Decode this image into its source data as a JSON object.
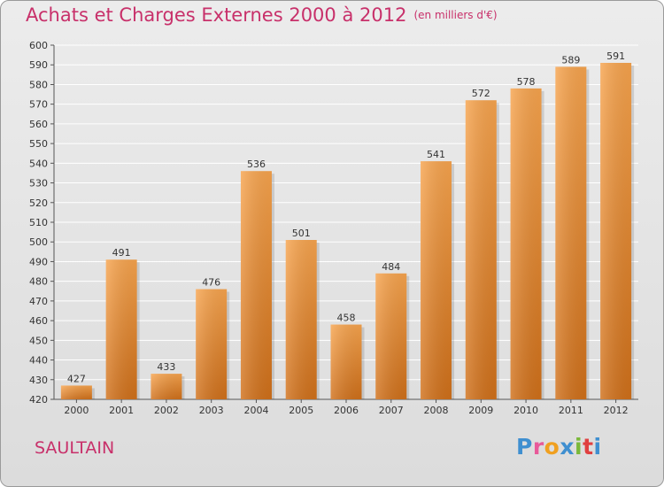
{
  "header": {
    "title": "Achats et Charges Externes 2000 à 2012",
    "unit": "(en milliers d'€)"
  },
  "footer": {
    "city": "SAULTAIN",
    "logo": "Proxiti",
    "logo_letters": [
      "P",
      "r",
      "o",
      "x",
      "i",
      "t",
      "i"
    ]
  },
  "colors": {
    "title": "#c8306a",
    "bar_top": "#f7a44e",
    "bar_bottom": "#d0701a",
    "grid": "#ffffff"
  },
  "chart_data": {
    "type": "bar",
    "title": "Achats et Charges Externes 2000 à 2012",
    "subtitle": "(en milliers d'€)",
    "categories": [
      "2000",
      "2001",
      "2002",
      "2003",
      "2004",
      "2005",
      "2006",
      "2007",
      "2008",
      "2009",
      "2010",
      "2011",
      "2012"
    ],
    "values": [
      427,
      491,
      433,
      476,
      536,
      501,
      458,
      484,
      541,
      572,
      578,
      589,
      591
    ],
    "ylim": [
      420,
      600
    ],
    "yticks": [
      420,
      430,
      440,
      450,
      460,
      470,
      480,
      490,
      500,
      510,
      520,
      530,
      540,
      550,
      560,
      570,
      580,
      590,
      600
    ],
    "grid": true,
    "data_labels": true
  }
}
